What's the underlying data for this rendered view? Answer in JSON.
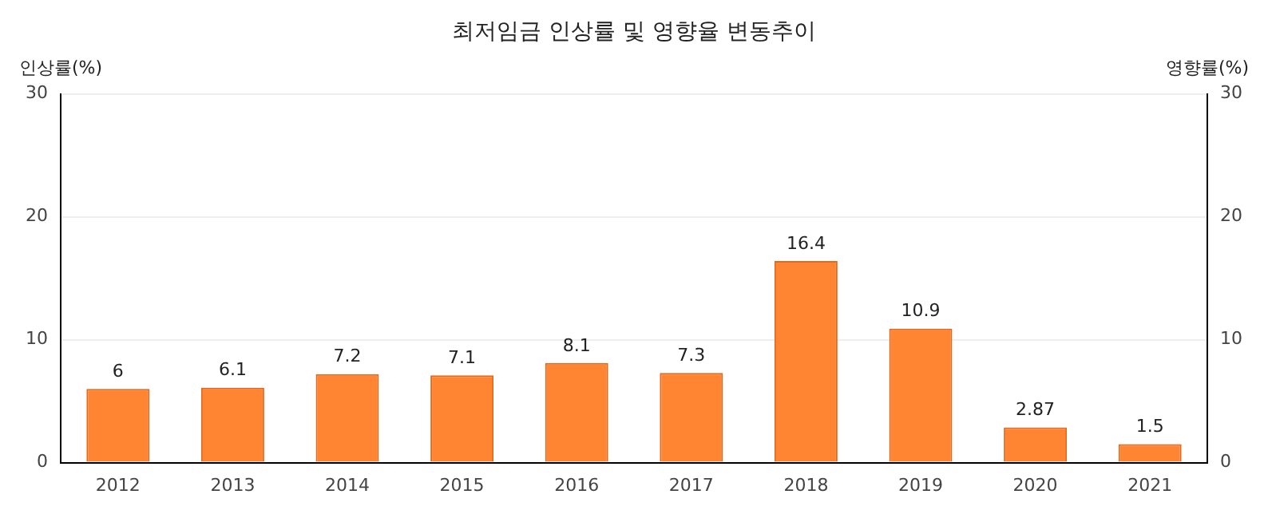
{
  "chart_data": {
    "type": "bar",
    "title": "최저임금 인상률 및 영향율 변동추이",
    "ylabel": "인상률(%)",
    "y2label": "영향률(%)",
    "categories": [
      "2012",
      "2013",
      "2014",
      "2015",
      "2016",
      "2017",
      "2018",
      "2019",
      "2020",
      "2021"
    ],
    "series": [
      {
        "color": "#ff8533",
        "values": [
          6,
          6.1,
          7.2,
          7.1,
          8.1,
          7.3,
          16.4,
          10.9,
          2.87,
          1.5
        ]
      }
    ],
    "ylim": [
      0,
      30
    ],
    "yticks": [
      0,
      10,
      20,
      30
    ],
    "y2lim": [
      0,
      30
    ],
    "y2ticks": [
      0,
      10,
      20,
      30
    ],
    "grid": "y",
    "data_labels": true,
    "legend": false
  }
}
